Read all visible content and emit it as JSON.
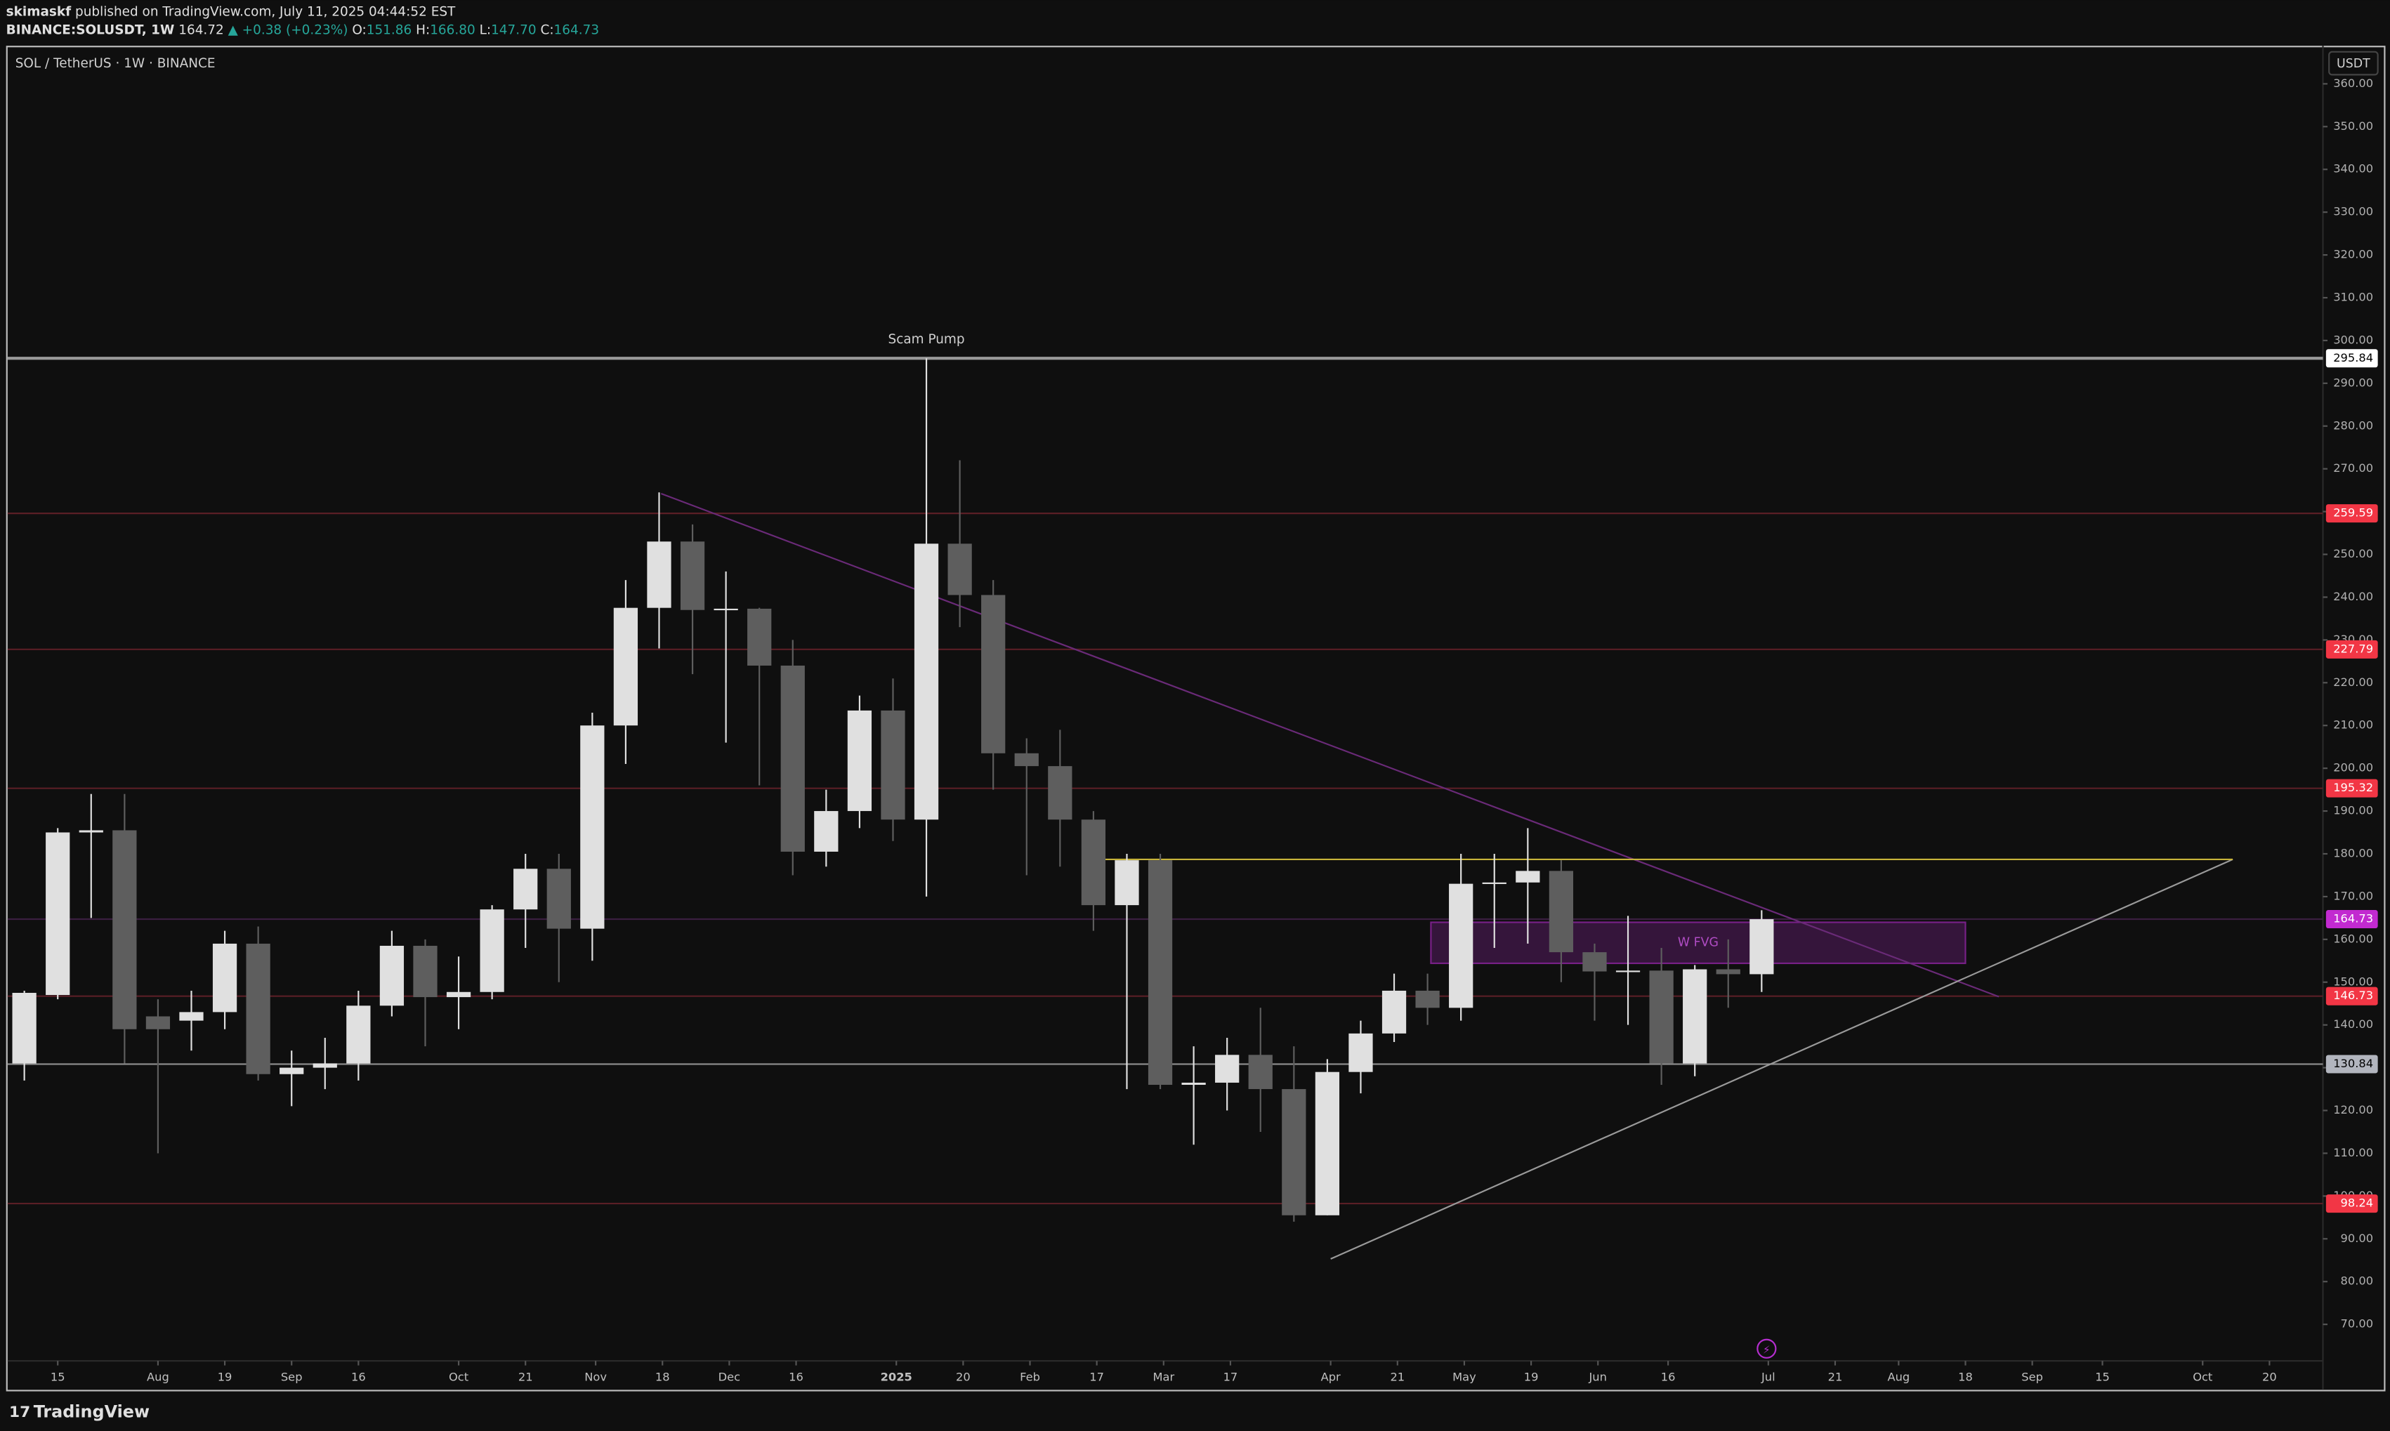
{
  "header": {
    "author": "skimaskf",
    "published": "published on TradingView.com, July 11, 2025 04:44:52 EST",
    "symbol": "BINANCE:SOLUSDT, 1W",
    "last": "164.72",
    "change": "▲ +0.38 (+0.23%)",
    "o_label": "O:",
    "o": "151.86",
    "h_label": "H:",
    "h": "166.80",
    "l_label": "L:",
    "l": "147.70",
    "c_label": "C:",
    "c": "164.73"
  },
  "footer": {
    "logo": "TradingView"
  },
  "chart_data": {
    "type": "candlestick",
    "title": "SOL / TetherUS · 1W · BINANCE",
    "currency": "USDT",
    "open": [
      131,
      147,
      185,
      185.5,
      142,
      141,
      143,
      159,
      128.5,
      130,
      131,
      144.5,
      158.5,
      146.5,
      147.7,
      167,
      176.5,
      162.5,
      210,
      237.5,
      253,
      237,
      237.3,
      224,
      180.5,
      190,
      213.5,
      188,
      252.5,
      240.5,
      203.5,
      200.5,
      188,
      168,
      178.5,
      126,
      126.5,
      133,
      125,
      95.5,
      129,
      138,
      148,
      144,
      173,
      173.3,
      176,
      157,
      152.5,
      152.7,
      131,
      153,
      151.86
    ],
    "high": [
      148,
      186,
      194,
      194,
      146,
      148,
      162,
      163,
      134,
      137,
      148,
      162,
      160,
      156,
      168,
      180,
      180,
      213,
      244,
      264.5,
      257,
      246,
      237.5,
      230,
      195,
      217,
      221,
      295.84,
      272,
      244,
      207,
      209,
      190,
      180,
      180,
      135,
      137,
      144,
      135,
      132,
      141,
      152,
      152,
      180,
      180,
      186,
      178.5,
      159,
      165.5,
      158,
      154,
      160,
      166.8
    ],
    "low": [
      127,
      146,
      165,
      131,
      110,
      134,
      139,
      127,
      121,
      125,
      127,
      142,
      135,
      139,
      146,
      158,
      150,
      155,
      201,
      228,
      222,
      206,
      196,
      175,
      177,
      186,
      183,
      170,
      233,
      195,
      175,
      177,
      162,
      125,
      125,
      112,
      120,
      115,
      94,
      95.5,
      124,
      136,
      140,
      141,
      158,
      159,
      150,
      141,
      140,
      126,
      128,
      144,
      147.7
    ],
    "close": [
      147.5,
      185,
      185.5,
      139,
      139,
      143,
      159,
      128.5,
      130,
      131,
      144.5,
      158.5,
      146.5,
      147.7,
      167,
      176.5,
      162.5,
      210,
      237.5,
      253,
      237,
      237.3,
      224,
      180.5,
      190,
      213.5,
      188,
      252.5,
      240.5,
      203.5,
      200.5,
      188,
      168,
      178.5,
      126,
      126.5,
      133,
      125,
      95.5,
      129,
      138,
      148,
      144,
      173,
      173.3,
      176,
      157,
      152.5,
      152.7,
      131,
      153,
      151.86,
      164.72
    ],
    "up_color": "#e0e0e0",
    "down_color": "#5e5e5e",
    "xlim": [
      -0.5,
      68.8
    ],
    "ylim": [
      54.7,
      368.9
    ],
    "xticks": [
      {
        "value": 1.0,
        "label": "15"
      },
      {
        "value": 4.0,
        "label": "Aug"
      },
      {
        "value": 6.0,
        "label": "19"
      },
      {
        "value": 8.0,
        "label": "Sep"
      },
      {
        "value": 10.0,
        "label": "16"
      },
      {
        "value": 13.0,
        "label": "Oct"
      },
      {
        "value": 15.0,
        "label": "21"
      },
      {
        "value": 17.1,
        "label": "Nov"
      },
      {
        "value": 19.1,
        "label": "18"
      },
      {
        "value": 21.1,
        "label": "Dec"
      },
      {
        "value": 23.1,
        "label": "16"
      },
      {
        "value": 26.1,
        "label": "2025"
      },
      {
        "value": 28.1,
        "label": "20"
      },
      {
        "value": 30.1,
        "label": "Feb"
      },
      {
        "value": 32.1,
        "label": "17"
      },
      {
        "value": 34.1,
        "label": "Mar"
      },
      {
        "value": 36.1,
        "label": "17"
      },
      {
        "value": 39.1,
        "label": "Apr"
      },
      {
        "value": 41.1,
        "label": "21"
      },
      {
        "value": 43.1,
        "label": "May"
      },
      {
        "value": 45.1,
        "label": "19"
      },
      {
        "value": 47.1,
        "label": "Jun"
      },
      {
        "value": 49.2,
        "label": "16"
      },
      {
        "value": 52.2,
        "label": "Jul"
      },
      {
        "value": 54.2,
        "label": "21"
      },
      {
        "value": 56.1,
        "label": "Aug"
      },
      {
        "value": 58.1,
        "label": "18"
      },
      {
        "value": 60.1,
        "label": "Sep"
      },
      {
        "value": 62.2,
        "label": "15"
      },
      {
        "value": 65.2,
        "label": "Oct"
      },
      {
        "value": 67.2,
        "label": "20"
      }
    ],
    "yticks": [
      {
        "value": 70,
        "label": "70.00"
      },
      {
        "value": 80,
        "label": "80.00"
      },
      {
        "value": 90,
        "label": "90.00"
      },
      {
        "value": 100,
        "label": "100.00"
      },
      {
        "value": 110,
        "label": "110.00"
      },
      {
        "value": 120,
        "label": "120.00"
      },
      {
        "value": 130,
        "label": "130.00"
      },
      {
        "value": 140,
        "label": "140.00"
      },
      {
        "value": 150,
        "label": "150.00"
      },
      {
        "value": 160,
        "label": "160.00"
      },
      {
        "value": 170,
        "label": "170.00"
      },
      {
        "value": 180,
        "label": "180.00"
      },
      {
        "value": 190,
        "label": "190.00"
      },
      {
        "value": 200,
        "label": "200.00"
      },
      {
        "value": 210,
        "label": "210.00"
      },
      {
        "value": 220,
        "label": "220.00"
      },
      {
        "value": 230,
        "label": "230.00"
      },
      {
        "value": 240,
        "label": "240.00"
      },
      {
        "value": 250,
        "label": "250.00"
      },
      {
        "value": 260,
        "label": "260.00"
      },
      {
        "value": 270,
        "label": "270.00"
      },
      {
        "value": 280,
        "label": "280.00"
      },
      {
        "value": 290,
        "label": "290.00"
      },
      {
        "value": 300,
        "label": "300.00"
      },
      {
        "value": 310,
        "label": "310.00"
      },
      {
        "value": 320,
        "label": "320.00"
      },
      {
        "value": 330,
        "label": "330.00"
      },
      {
        "value": 340,
        "label": "340.00"
      },
      {
        "value": 350,
        "label": "350.00"
      },
      {
        "value": 360,
        "label": "360.00"
      }
    ],
    "price_levels": [
      {
        "price": 295.84,
        "color": "#9a9a9a",
        "label_color": "#ffffff",
        "text_color": "#000000"
      },
      {
        "price": 259.59,
        "color": "#5a1f26",
        "label_color": "#f23645",
        "text_color": "#ffffff"
      },
      {
        "price": 227.79,
        "color": "#5a1f26",
        "label_color": "#f23645",
        "text_color": "#ffffff"
      },
      {
        "price": 195.32,
        "color": "#5a1f26",
        "label_color": "#f23645",
        "text_color": "#ffffff"
      },
      {
        "price": 164.73,
        "color": "#3a1f40",
        "label_color": "#c22ad0",
        "text_color": "#ffffff"
      },
      {
        "price": 146.73,
        "color": "#5a1f26",
        "label_color": "#f23645",
        "text_color": "#ffffff"
      },
      {
        "price": 130.84,
        "color": "#8a8a8a",
        "label_color": "#b2b5be",
        "text_color": "#000000"
      },
      {
        "price": 98.24,
        "color": "#5a1f26",
        "label_color": "#f23645",
        "text_color": "#ffffff"
      }
    ],
    "trend_lines": [
      {
        "x": [
          19.06,
          59.1
        ],
        "y": [
          264.2,
          146.6
        ],
        "color": "#6a2a78"
      },
      {
        "x": [
          39.1,
          66.1
        ],
        "y": [
          85.3,
          178.7
        ],
        "color": "#9a9a9a"
      },
      {
        "x": [
          32.1,
          66.1
        ],
        "y": [
          178.7,
          178.7
        ],
        "color": "#c8b43a"
      }
    ],
    "zone": {
      "label": "W FVG",
      "x": [
        42.1,
        58.1
      ],
      "y": [
        154.4,
        164
      ],
      "color": "#9c27b0"
    },
    "annotation": {
      "text": "Scam Pump",
      "x": 27
    }
  }
}
